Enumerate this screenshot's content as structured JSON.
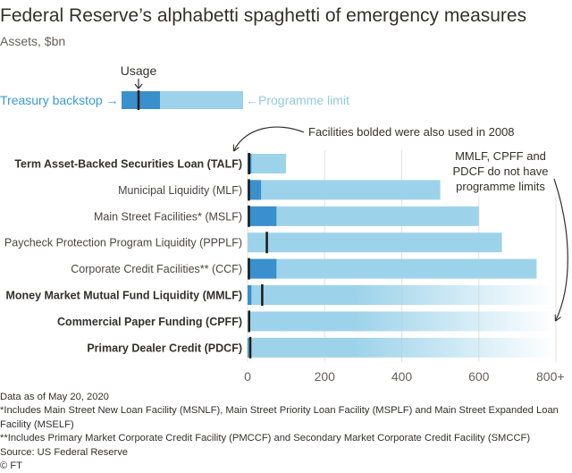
{
  "title": "Federal Reserve’s alphabetti spaghetti of emergency measures",
  "subtitle": "Assets, $bn",
  "colors": {
    "usage": "#3a8fcd",
    "limit": "#9dd3ea",
    "accent_text": "#3a9ad5",
    "limit_text": "#8fcbe3",
    "marker": "#1a1a1a",
    "axis_text": "#66605c",
    "background": "#ffffff"
  },
  "legend": {
    "usage_label": "Usage",
    "treasury_label": "Treasury backstop →",
    "limit_label": "←Programme limit"
  },
  "annotations": {
    "bolded_note": "Facilities bolded were also used in 2008",
    "no_limit_note": [
      "MMLF, CPFF and",
      "PDCF do not have",
      "programme limits"
    ]
  },
  "chart_data": {
    "type": "bar",
    "orientation": "horizontal",
    "xlim": [
      0,
      800
    ],
    "xticks": [
      "0",
      "200",
      "400",
      "600",
      "800+"
    ],
    "grid": true,
    "categories": [
      "Term Asset-Backed Securities Loan (TALF)",
      "Municipal Liquidity (MLF)",
      "Main Street Facilities* (MSLF)",
      "Paycheck Protection Program Liquidity (PPPLF)",
      "Corporate Credit Facilities** (CCF)",
      "Money Market Mutual Fund Liquidity (MMLF)",
      "Commercial Paper Funding (CPFF)",
      "Primary Dealer Credit (PDCF)"
    ],
    "bold": [
      true,
      false,
      false,
      false,
      false,
      true,
      true,
      true
    ],
    "series": [
      {
        "name": "Programme limit",
        "values": [
          100,
          500,
          600,
          660,
          750,
          null,
          null,
          null
        ]
      },
      {
        "name": "Treasury backstop",
        "values": [
          10,
          35,
          75,
          0,
          75,
          10,
          0,
          3
        ]
      },
      {
        "name": "Usage",
        "values": [
          4,
          3,
          0,
          50,
          1,
          38,
          4,
          7
        ]
      }
    ]
  },
  "footnotes": [
    "Data as of May 20, 2020",
    "*Includes Main Street New Loan Facility (MSNLF), Main Street Priority Loan Facility (MSPLF) and Main Street Expanded Loan Facility (MSELF)",
    "**Includes Primary Market Corporate Credit Facility (PMCCF) and Secondary Market Corporate Credit Facility (SMCCF)",
    "Source: US Federal Reserve",
    "© FT"
  ]
}
